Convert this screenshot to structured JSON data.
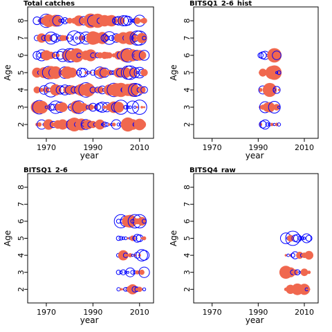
{
  "figure": {
    "colors": {
      "positive": "#f0684f",
      "negative": "#0000ff",
      "frame": "#000000"
    }
  },
  "chart_data": [
    {
      "type": "scatter",
      "title": "Total catches",
      "xlabel": "year",
      "ylabel": "Age",
      "xlim": [
        1962,
        2016
      ],
      "ylim": [
        1.2,
        8.8
      ],
      "xticks": [
        1970,
        1990,
        2010
      ],
      "yticks": [
        2,
        3,
        4,
        5,
        6,
        7,
        8
      ],
      "year_range": [
        1966,
        2012
      ],
      "ages": [
        2,
        3,
        4,
        5,
        6,
        7,
        8
      ],
      "seed": 11,
      "density": 1.0
    },
    {
      "type": "scatter",
      "title": "BITSQ1_2-6_hist",
      "xlabel": "year",
      "ylabel": "Age",
      "xlim": [
        1962,
        2016
      ],
      "ylim": [
        1.2,
        8.8
      ],
      "xticks": [
        1970,
        1990,
        2010
      ],
      "yticks": [
        2,
        3,
        4,
        5,
        6,
        7,
        8
      ],
      "year_range": [
        1991,
        1999
      ],
      "ages": [
        2,
        3,
        4,
        5,
        6
      ],
      "seed": 23,
      "density": 1.0
    },
    {
      "type": "scatter",
      "title": "BITSQ1_2-6",
      "xlabel": "year",
      "ylabel": "Age",
      "xlim": [
        1962,
        2016
      ],
      "ylim": [
        1.2,
        8.8
      ],
      "xticks": [
        1970,
        1990,
        2010
      ],
      "yticks": [
        2,
        3,
        4,
        5,
        6,
        7,
        8
      ],
      "year_range": [
        2001,
        2012
      ],
      "ages": [
        2,
        3,
        4,
        5,
        6
      ],
      "seed": 37,
      "density": 1.0
    },
    {
      "type": "scatter",
      "title": "BITSQ4_raw",
      "xlabel": "year",
      "ylabel": "Age",
      "xlim": [
        1962,
        2016
      ],
      "ylim": [
        1.2,
        8.8
      ],
      "xticks": [
        1970,
        1990,
        2010
      ],
      "yticks": [
        2,
        3,
        4,
        5,
        6,
        7,
        8
      ],
      "year_range": [
        2002,
        2012
      ],
      "ages": [
        2,
        3,
        4,
        5
      ],
      "seed": 53,
      "density": 1.0
    }
  ]
}
